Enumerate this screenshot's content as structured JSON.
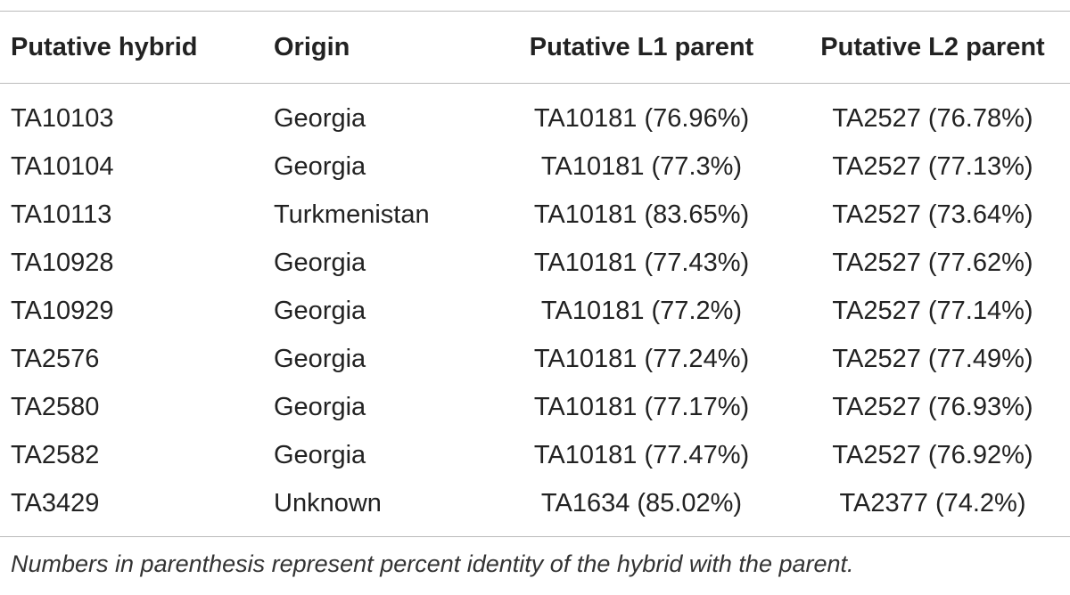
{
  "table": {
    "header": [
      "Putative hybrid",
      "Origin",
      "Putative L1 parent",
      "Putative L2 parent"
    ],
    "rows": [
      [
        "TA10103",
        "Georgia",
        "TA10181 (76.96%)",
        "TA2527 (76.78%)"
      ],
      [
        "TA10104",
        "Georgia",
        "TA10181 (77.3%)",
        "TA2527 (77.13%)"
      ],
      [
        "TA10113",
        "Turkmenistan",
        "TA10181 (83.65%)",
        "TA2527 (73.64%)"
      ],
      [
        "TA10928",
        "Georgia",
        "TA10181 (77.43%)",
        "TA2527 (77.62%)"
      ],
      [
        "TA10929",
        "Georgia",
        "TA10181 (77.2%)",
        "TA2527 (77.14%)"
      ],
      [
        "TA2576",
        "Georgia",
        "TA10181 (77.24%)",
        "TA2527 (77.49%)"
      ],
      [
        "TA2580",
        "Georgia",
        "TA10181 (77.17%)",
        "TA2527 (76.93%)"
      ],
      [
        "TA2582",
        "Georgia",
        "TA10181 (77.47%)",
        "TA2527 (76.92%)"
      ],
      [
        "TA3429",
        "Unknown",
        "TA1634 (85.02%)",
        "TA2377 (74.2%)"
      ]
    ],
    "footnote": "Numbers in parenthesis represent percent identity of the hybrid with the parent."
  }
}
